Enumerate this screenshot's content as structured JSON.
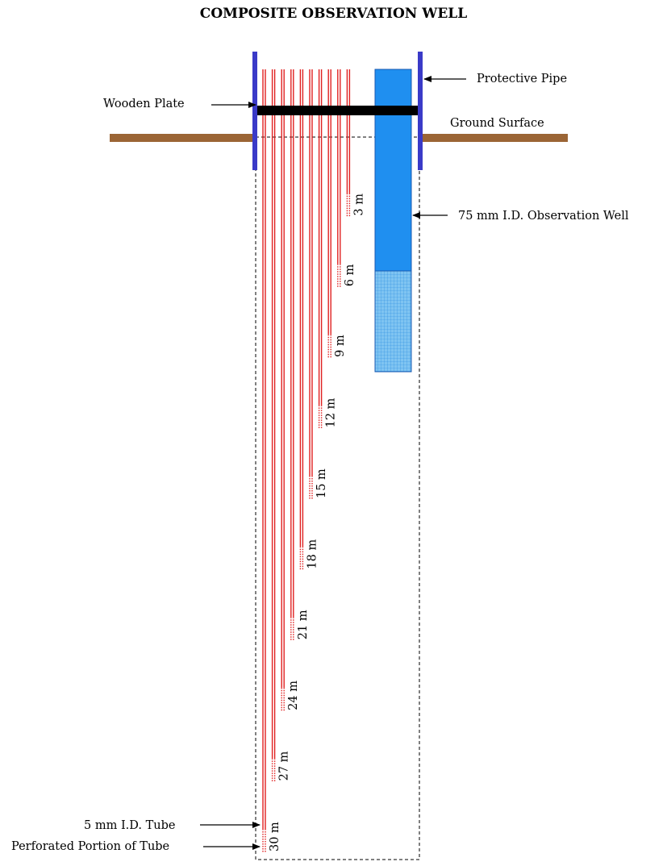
{
  "title": "COMPOSITE OBSERVATION WELL",
  "labels": {
    "protective_pipe": "Protective Pipe",
    "wooden_plate": "Wooden Plate",
    "ground_surface": "Ground Surface",
    "observation_well": "75 mm I.D. Observation Well",
    "tube": "5 mm I.D. Tube",
    "perforated_portion": "Perforated Portion of Tube"
  },
  "tube_depths": [
    {
      "depth_m": 3,
      "label": "3 m"
    },
    {
      "depth_m": 6,
      "label": "6 m"
    },
    {
      "depth_m": 9,
      "label": "9 m"
    },
    {
      "depth_m": 12,
      "label": "12 m"
    },
    {
      "depth_m": 15,
      "label": "15 m"
    },
    {
      "depth_m": 18,
      "label": "18 m"
    },
    {
      "depth_m": 21,
      "label": "21 m"
    },
    {
      "depth_m": 24,
      "label": "24 m"
    },
    {
      "depth_m": 27,
      "label": "27 m"
    },
    {
      "depth_m": 30,
      "label": "30 m"
    }
  ],
  "colors": {
    "protective_pipe": "#3a3ac8",
    "ground": "#9b6535",
    "wooden_plate": "#000000",
    "well_casing": "#1f8ff0",
    "well_screen": "#7fc4f2",
    "tube": "#e02020"
  }
}
